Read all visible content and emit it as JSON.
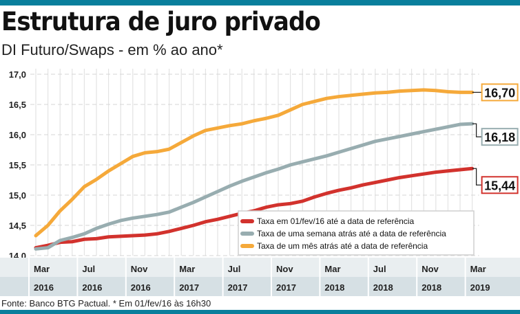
{
  "header": {
    "title": "Estrutura de juro privado",
    "subtitle": "DI Futuro/Swaps - em % ao ano*"
  },
  "footer": {
    "source": "Fonte: Banco BTG Pactual. * Em 01/fev/16 às 16h30"
  },
  "chart_data": {
    "type": "line",
    "title": "Estrutura de juro privado",
    "subtitle": "DI Futuro/Swaps - em % ao ano*",
    "ylim": [
      14.0,
      17.0
    ],
    "yticks": [
      "14,0",
      "14,5",
      "15,0",
      "15,5",
      "16,0",
      "16,5",
      "17,0"
    ],
    "ytick_values": [
      14.0,
      14.5,
      15.0,
      15.5,
      16.0,
      16.5,
      17.0
    ],
    "grid": true,
    "legend_position": "bottom-right",
    "x_months": 37,
    "x_tick_labels": [
      {
        "month": "Mar",
        "year": "2016"
      },
      {
        "month": "Jul",
        "year": "2016"
      },
      {
        "month": "Nov",
        "year": "2016"
      },
      {
        "month": "Mar",
        "year": "2017"
      },
      {
        "month": "Jul",
        "year": "2017"
      },
      {
        "month": "Nov",
        "year": "2017"
      },
      {
        "month": "Mar",
        "year": "2018"
      },
      {
        "month": "Jul",
        "year": "2018"
      },
      {
        "month": "Nov",
        "year": "2018"
      },
      {
        "month": "Mar",
        "year": "2019"
      }
    ],
    "series": [
      {
        "name": "Taxa em 01/fev/16 até a data de referência",
        "color": "#d2322d",
        "end_label": "15,44",
        "values": [
          14.13,
          14.17,
          14.22,
          14.23,
          14.27,
          14.28,
          14.31,
          14.32,
          14.33,
          14.34,
          14.36,
          14.4,
          14.45,
          14.5,
          14.56,
          14.6,
          14.65,
          14.7,
          14.74,
          14.8,
          14.84,
          14.86,
          14.9,
          14.97,
          15.03,
          15.08,
          15.12,
          15.17,
          15.21,
          15.25,
          15.29,
          15.32,
          15.35,
          15.38,
          15.4,
          15.42,
          15.44
        ]
      },
      {
        "name": "Taxa de uma semana atrás até a data de referência",
        "color": "#98adb0",
        "end_label": "16,18",
        "values": [
          14.11,
          14.13,
          14.25,
          14.3,
          14.36,
          14.45,
          14.52,
          14.58,
          14.62,
          14.65,
          14.68,
          14.72,
          14.8,
          14.88,
          14.97,
          15.06,
          15.15,
          15.23,
          15.3,
          15.37,
          15.43,
          15.5,
          15.55,
          15.6,
          15.65,
          15.71,
          15.77,
          15.83,
          15.89,
          15.93,
          15.97,
          16.01,
          16.05,
          16.09,
          16.13,
          16.17,
          16.18
        ]
      },
      {
        "name": "Taxa de um mês atrás até a data de referência",
        "color": "#f5a93a",
        "end_label": "16,70",
        "values": [
          14.33,
          14.5,
          14.74,
          14.93,
          15.14,
          15.26,
          15.4,
          15.52,
          15.64,
          15.7,
          15.72,
          15.76,
          15.87,
          15.98,
          16.07,
          16.11,
          16.15,
          16.18,
          16.23,
          16.27,
          16.32,
          16.41,
          16.5,
          16.55,
          16.6,
          16.63,
          16.65,
          16.67,
          16.69,
          16.7,
          16.72,
          16.73,
          16.74,
          16.73,
          16.71,
          16.7,
          16.7
        ]
      }
    ]
  }
}
